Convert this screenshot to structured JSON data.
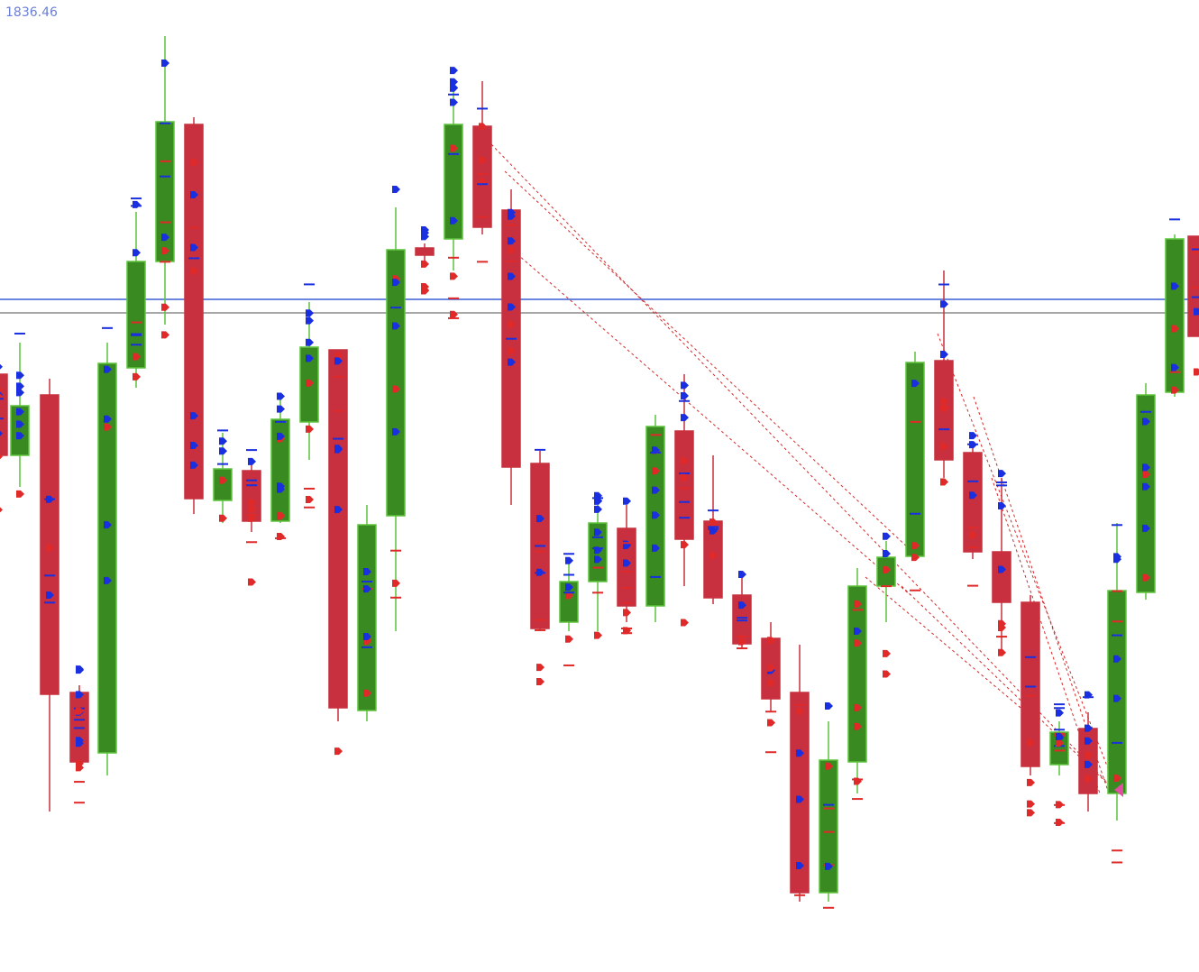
{
  "price_label": "1836.46"
}
